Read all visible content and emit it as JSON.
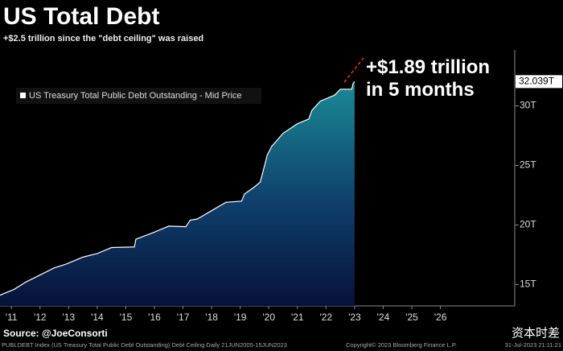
{
  "chart_data": {
    "type": "area",
    "title": "US Total Debt",
    "subtitle": "+$2.5 trillion since the \"debt ceiling\" was raised",
    "annotation": "+$1.89 trillion in 5 months",
    "x": [
      2011.1,
      2011.6,
      2012.0,
      2012.5,
      2013.0,
      2013.4,
      2013.8,
      2014.0,
      2014.5,
      2015.0,
      2015.8,
      2015.85,
      2016.5,
      2017.0,
      2017.6,
      2017.75,
      2018.0,
      2018.5,
      2019.0,
      2019.55,
      2019.65,
      2020.0,
      2020.2,
      2020.45,
      2020.6,
      2021.0,
      2021.5,
      2021.9,
      2022.0,
      2022.3,
      2022.8,
      2023.0,
      2023.4,
      2023.45,
      2023.5
    ],
    "series": [
      {
        "name": "US Treasury Total Public Debt Outstanding - Mid Price",
        "color": "#ffffff",
        "values": [
          14.1,
          14.6,
          15.2,
          15.8,
          16.4,
          16.7,
          17.1,
          17.3,
          17.6,
          18.1,
          18.15,
          18.8,
          19.4,
          19.9,
          19.85,
          20.4,
          20.5,
          21.2,
          21.9,
          22.0,
          22.6,
          23.2,
          23.6,
          25.9,
          26.6,
          27.7,
          28.5,
          28.9,
          29.6,
          30.4,
          30.9,
          31.4,
          31.4,
          31.9,
          32.039
        ]
      }
    ],
    "last_value": {
      "value": 32.039,
      "label": "32.039T"
    },
    "xlim": [
      2011.1,
      2029.1
    ],
    "ylim": [
      13.2,
      34.7
    ],
    "yticks": [
      {
        "value": 15,
        "label": "15T"
      },
      {
        "value": 20,
        "label": "20T"
      },
      {
        "value": 25,
        "label": "25T"
      },
      {
        "value": 30,
        "label": "30T"
      }
    ],
    "xticks": [
      {
        "value": 2011.5,
        "label": "'11"
      },
      {
        "value": 2012.5,
        "label": "'12"
      },
      {
        "value": 2013.5,
        "label": "'13"
      },
      {
        "value": 2014.5,
        "label": "'14"
      },
      {
        "value": 2015.5,
        "label": "'15"
      },
      {
        "value": 2016.5,
        "label": "'16"
      },
      {
        "value": 2017.5,
        "label": "'17"
      },
      {
        "value": 2018.5,
        "label": "'18"
      },
      {
        "value": 2019.5,
        "label": "'19"
      },
      {
        "value": 2020.5,
        "label": "'20"
      },
      {
        "value": 2021.5,
        "label": "'21"
      },
      {
        "value": 2022.5,
        "label": "'22"
      },
      {
        "value": 2023.5,
        "label": "'23"
      },
      {
        "value": 2024.5,
        "label": "'24"
      },
      {
        "value": 2025.5,
        "label": "'25"
      },
      {
        "value": 2026.5,
        "label": "'26"
      }
    ],
    "source": "Source: @JoeConsorti",
    "footer": "PUBLDEBT Index (US Treasury Total Public Debt Outstanding) Debt Ceiling  Daily 21JUN2005-15JUN2023",
    "copyright": "Copyright© 2023 Bloomberg Finance L.P.",
    "timestamp": "31-Jul-2023 21:11:21",
    "watermark": "资本时差"
  }
}
